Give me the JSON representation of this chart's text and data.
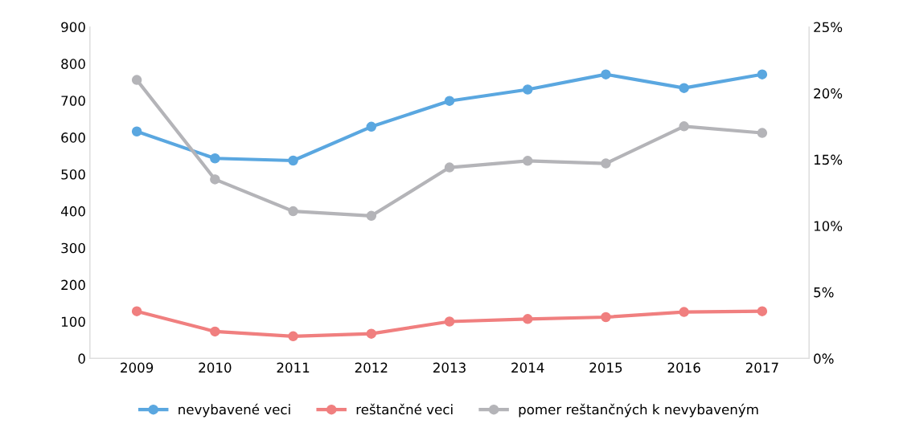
{
  "chart_data": {
    "type": "line",
    "categories": [
      "2009",
      "2010",
      "2011",
      "2012",
      "2013",
      "2014",
      "2015",
      "2016",
      "2017"
    ],
    "series": [
      {
        "name": "nevybavené veci",
        "color": "#5aa7e0",
        "values": [
          616,
          543,
          537,
          629,
          699,
          730,
          771,
          734,
          771
        ]
      },
      {
        "name": "reštančné veci",
        "color": "#f07f7f",
        "values": [
          128,
          73,
          60,
          67,
          100,
          107,
          112,
          126,
          128
        ]
      },
      {
        "name": "pomer reštančných k nevybaveným",
        "color": "#b4b4b8",
        "axis": "y2",
        "values": [
          21.0,
          13.5,
          11.1,
          10.75,
          14.4,
          14.9,
          14.7,
          17.5,
          17.0
        ]
      }
    ],
    "ylim": [
      0,
      900
    ],
    "yticks": [
      0,
      100,
      200,
      300,
      400,
      500,
      600,
      700,
      800,
      900
    ],
    "y2lim": [
      0,
      25
    ],
    "y2ticks": [
      {
        "value": 0,
        "label": "0%"
      },
      {
        "value": 5,
        "label": "5%"
      },
      {
        "value": 10,
        "label": "10%"
      },
      {
        "value": 15,
        "label": "15%"
      },
      {
        "value": 20,
        "label": "20%"
      },
      {
        "value": 25,
        "label": "25%"
      }
    ],
    "marker": "circle",
    "line_style": "solid",
    "grid": false,
    "legend": "bottom"
  }
}
